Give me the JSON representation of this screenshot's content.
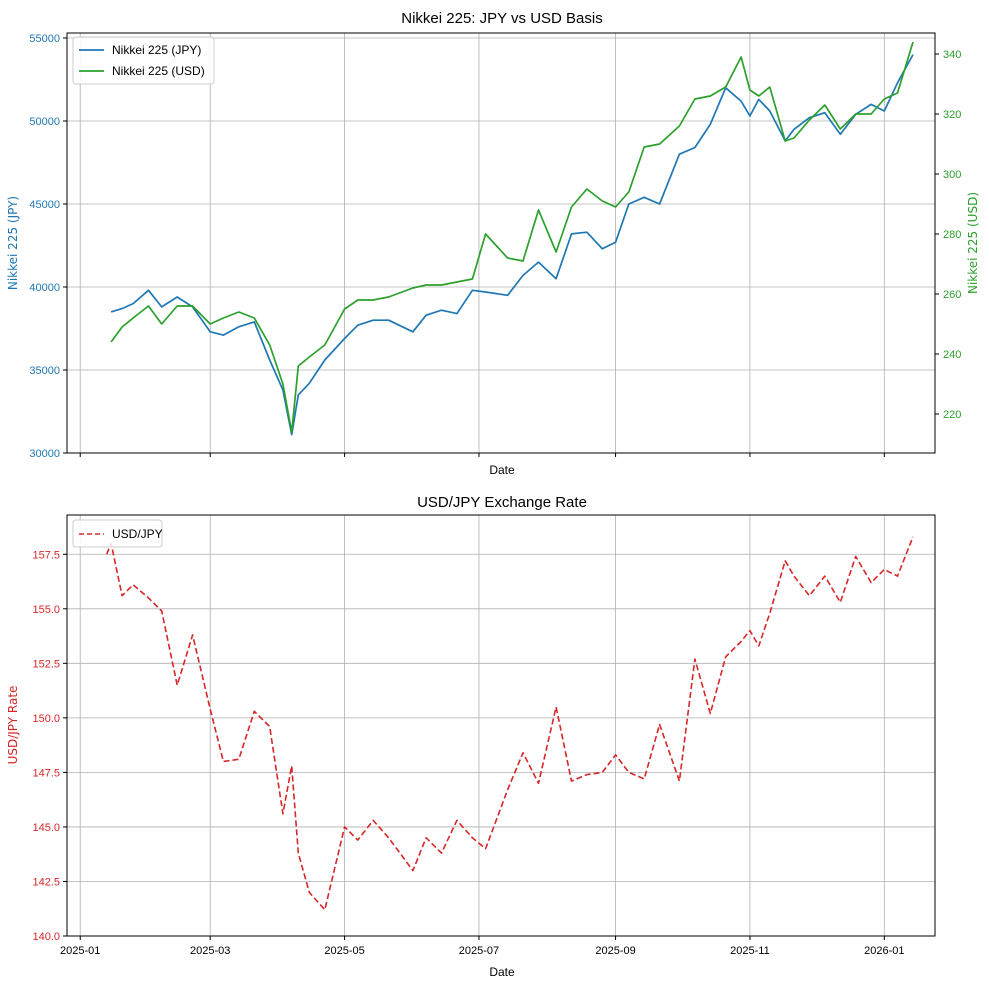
{
  "colors": {
    "jpy": "#1f77b4",
    "usd": "#2ca02c",
    "fx": "#d62728"
  },
  "chart_data": [
    {
      "type": "line",
      "title": "Nikkei 225: JPY vs USD Basis",
      "xlabel": "Date",
      "ylabel_left": "Nikkei 225 (JPY)",
      "ylabel_right": "Nikkei 225 (USD)",
      "ylim_left": [
        30000,
        55300
      ],
      "ylim_right": [
        207,
        347
      ],
      "left_ticks": [
        "30000",
        "35000",
        "40000",
        "45000",
        "50000",
        "55000"
      ],
      "right_ticks": [
        "220",
        "240",
        "260",
        "280",
        "300",
        "320",
        "340"
      ],
      "legend": [
        "Nikkei 225 (JPY)",
        "Nikkei 225 (USD)"
      ],
      "legend_loc": "upper-left",
      "grid": true,
      "x": [
        "2025-01-15",
        "2025-01-20",
        "2025-01-25",
        "2025-02-01",
        "2025-02-07",
        "2025-02-14",
        "2025-02-21",
        "2025-03-01",
        "2025-03-07",
        "2025-03-14",
        "2025-03-21",
        "2025-03-28",
        "2025-04-03",
        "2025-04-07",
        "2025-04-10",
        "2025-04-15",
        "2025-04-22",
        "2025-05-01",
        "2025-05-07",
        "2025-05-14",
        "2025-05-21",
        "2025-06-01",
        "2025-06-07",
        "2025-06-14",
        "2025-06-21",
        "2025-06-28",
        "2025-07-04",
        "2025-07-14",
        "2025-07-21",
        "2025-07-28",
        "2025-08-05",
        "2025-08-12",
        "2025-08-19",
        "2025-08-26",
        "2025-09-01",
        "2025-09-07",
        "2025-09-14",
        "2025-09-21",
        "2025-09-30",
        "2025-10-07",
        "2025-10-14",
        "2025-10-21",
        "2025-10-28",
        "2025-11-01",
        "2025-11-05",
        "2025-11-10",
        "2025-11-17",
        "2025-11-21",
        "2025-11-28",
        "2025-12-05",
        "2025-12-12",
        "2025-12-19",
        "2025-12-26",
        "2026-01-01",
        "2026-01-07",
        "2026-01-14"
      ],
      "series": [
        {
          "name": "Nikkei 225 (JPY)",
          "axis": "left",
          "values": [
            38500,
            38700,
            39000,
            39800,
            38800,
            39400,
            38800,
            37300,
            37100,
            37600,
            37900,
            35600,
            33800,
            31100,
            33500,
            34200,
            35600,
            36900,
            37700,
            38000,
            38000,
            37300,
            38300,
            38600,
            38400,
            39800,
            39700,
            39500,
            40700,
            41500,
            40500,
            43200,
            43300,
            42300,
            42700,
            45000,
            45400,
            45000,
            48000,
            48400,
            49800,
            52000,
            51200,
            50300,
            51300,
            50600,
            48800,
            49500,
            50200,
            50500,
            49200,
            50400,
            51000,
            50600,
            52300,
            54000
          ]
        },
        {
          "name": "Nikkei 225 (USD)",
          "axis": "right",
          "values": [
            244,
            249,
            252,
            256,
            250,
            256,
            256,
            250,
            252,
            254,
            252,
            243,
            230,
            214,
            236,
            239,
            243,
            255,
            258,
            258,
            259,
            262,
            263,
            263,
            264,
            265,
            280,
            272,
            271,
            288,
            274,
            289,
            295,
            291,
            289,
            294,
            309,
            310,
            316,
            325,
            326,
            329,
            339,
            328,
            326,
            329,
            311,
            312,
            318,
            323,
            315,
            320,
            320,
            325,
            327,
            344
          ]
        }
      ]
    },
    {
      "type": "line",
      "title": "USD/JPY Exchange Rate",
      "xlabel": "Date",
      "ylabel": "USD/JPY Rate",
      "ylim": [
        140.0,
        159.3
      ],
      "y_ticks": [
        "140.0",
        "142.5",
        "145.0",
        "147.5",
        "150.0",
        "152.5",
        "155.0",
        "157.5"
      ],
      "x_ticks": [
        "2025-01",
        "2025-03",
        "2025-05",
        "2025-07",
        "2025-09",
        "2025-11",
        "2026-01"
      ],
      "legend": [
        "USD/JPY"
      ],
      "legend_loc": "upper-left",
      "grid": true,
      "style": "dashed",
      "x": [
        "2025-01-13",
        "2025-01-15",
        "2025-01-20",
        "2025-01-25",
        "2025-02-01",
        "2025-02-07",
        "2025-02-14",
        "2025-02-21",
        "2025-03-01",
        "2025-03-07",
        "2025-03-14",
        "2025-03-21",
        "2025-03-28",
        "2025-04-03",
        "2025-04-07",
        "2025-04-10",
        "2025-04-15",
        "2025-04-22",
        "2025-05-01",
        "2025-05-07",
        "2025-05-14",
        "2025-05-21",
        "2025-06-01",
        "2025-06-07",
        "2025-06-14",
        "2025-06-21",
        "2025-06-28",
        "2025-07-04",
        "2025-07-14",
        "2025-07-21",
        "2025-07-28",
        "2025-08-05",
        "2025-08-12",
        "2025-08-19",
        "2025-08-26",
        "2025-09-01",
        "2025-09-07",
        "2025-09-14",
        "2025-09-21",
        "2025-09-30",
        "2025-10-07",
        "2025-10-14",
        "2025-10-21",
        "2025-10-28",
        "2025-11-01",
        "2025-11-05",
        "2025-11-10",
        "2025-11-17",
        "2025-11-21",
        "2025-11-28",
        "2025-12-05",
        "2025-12-12",
        "2025-12-19",
        "2025-12-26",
        "2026-01-01",
        "2026-01-07",
        "2026-01-14"
      ],
      "series": [
        {
          "name": "USD/JPY",
          "values": [
            157.5,
            158.0,
            155.6,
            156.1,
            155.5,
            154.9,
            151.5,
            153.8,
            150.4,
            148.0,
            148.1,
            150.3,
            149.6,
            145.6,
            147.8,
            143.8,
            142.0,
            141.2,
            145.0,
            144.4,
            145.3,
            144.5,
            143.0,
            144.5,
            143.8,
            145.3,
            144.5,
            144.0,
            146.7,
            148.4,
            147.0,
            150.5,
            147.1,
            147.4,
            147.5,
            148.3,
            147.5,
            147.2,
            149.7,
            147.1,
            152.7,
            150.2,
            152.8,
            153.5,
            154.0,
            153.3,
            154.8,
            157.2,
            156.5,
            155.6,
            156.5,
            155.3,
            157.4,
            156.2,
            156.8,
            156.5,
            158.3
          ]
        }
      ]
    }
  ]
}
